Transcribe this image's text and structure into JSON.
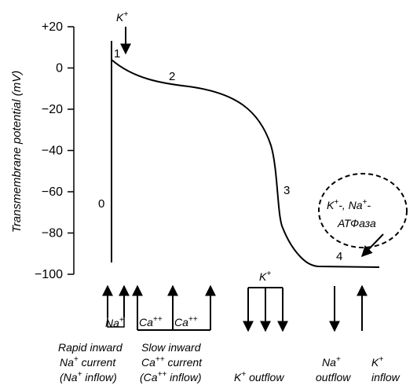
{
  "y_axis": {
    "label": "Transmembrane potential (mV)",
    "ticks": [
      "+20",
      "0",
      "−20",
      "−40",
      "−60",
      "−80",
      "−100"
    ]
  },
  "curve": {
    "description_points_mV": [
      {
        "phase": "0",
        "upstroke_from": -93,
        "upstroke_to": 12
      },
      {
        "phase": "1",
        "value": 3
      },
      {
        "phase": "2",
        "value": -8
      },
      {
        "phase": "3",
        "value": -55
      },
      {
        "phase": "4",
        "value": -97
      }
    ]
  },
  "phase_labels": {
    "p0": "0",
    "p1": "1",
    "p2": "2",
    "p3": "3",
    "p4": "4"
  },
  "top_ion": {
    "base": "K",
    "sup": "+"
  },
  "atpase_bubble": {
    "line1": {
      "k": "K",
      "k_sup": "+",
      "sep": "-, ",
      "na": "Na",
      "na_sup": "+",
      "end": "-"
    },
    "line2": "АТФаза"
  },
  "flow_labels": {
    "na_box": {
      "base": "Na",
      "sup": "+"
    },
    "ca_box1": {
      "base": "Ca",
      "sup": "++"
    },
    "ca_box2": {
      "base": "Ca",
      "sup": "++"
    },
    "k_top": {
      "base": "K",
      "sup": "+"
    }
  },
  "captions": {
    "rapid": {
      "line1": "Rapid inward",
      "line2": {
        "base": "Na",
        "sup": "+",
        "rest": " current"
      },
      "line3": {
        "open": "(Na",
        "sup": "+",
        "rest": " inflow)"
      }
    },
    "slow": {
      "line1": "Slow inward",
      "line2": {
        "base": "Ca",
        "sup": "++",
        "rest": " current"
      },
      "line3": {
        "open": "(Ca",
        "sup": "++",
        "rest": " inflow)"
      }
    },
    "k_outflow": {
      "base": "K",
      "sup": "+",
      "rest": " outflow"
    },
    "na_outflow": {
      "line1": {
        "base": "Na",
        "sup": "+"
      },
      "line2": "outflow"
    },
    "k_inflow": {
      "line1": {
        "base": "K",
        "sup": "+"
      },
      "line2": "inflow"
    }
  }
}
